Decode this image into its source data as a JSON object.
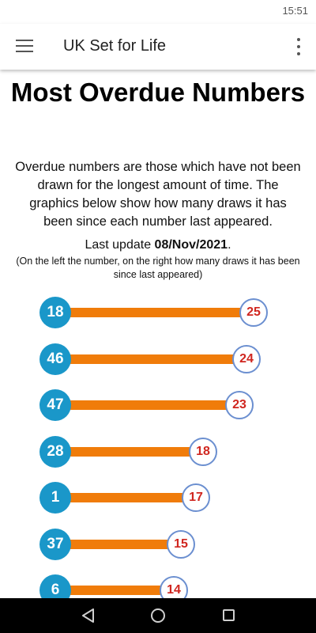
{
  "status_bar": {
    "time": "15:51"
  },
  "app_bar": {
    "title": "UK Set for Life",
    "menu_icon": "hamburger-menu-icon",
    "more_icon": "more-vert-icon"
  },
  "page": {
    "title": "Most Overdue Numbers",
    "description": "Overdue numbers are those which have not been drawn for the longest amount of time. The graphics below show how many draws it has been since each number last appeared.",
    "update_prefix": "Last update ",
    "update_date": "08/Nov/2021",
    "update_suffix": ".",
    "note": "(On the left the number, on the right how many draws it has been since last appeared)"
  },
  "colors": {
    "ball": "#1a97c9",
    "bar": "#f07c0a",
    "count_text": "#d0261f",
    "count_border": "#6b8fd0"
  },
  "chart_data": {
    "type": "bar",
    "orientation": "horizontal",
    "categories": [
      "18",
      "46",
      "47",
      "28",
      "1",
      "37",
      "6"
    ],
    "values": [
      25,
      24,
      23,
      18,
      17,
      15,
      14
    ],
    "xlim": [
      0,
      25
    ]
  },
  "nav_bar": {
    "back_icon": "back-triangle-icon",
    "home_icon": "home-circle-icon",
    "recent_icon": "recent-apps-square-icon"
  }
}
